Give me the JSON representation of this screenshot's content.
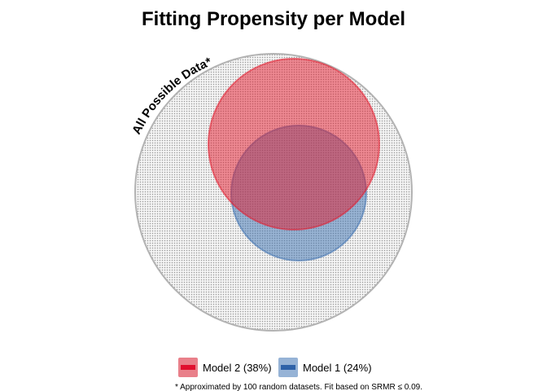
{
  "title": "Fitting Propensity per Model",
  "universe": {
    "label": "All Possible Data*",
    "fill_pattern": "dotted-grey",
    "stroke_color": "#b3b3b3"
  },
  "sets": [
    {
      "id": "model2",
      "label": "Model 2 (38%)",
      "percent": 38,
      "fill_color": "#e41a2c",
      "legend_swatch_color": "#e9808a",
      "legend_line_color": "#e0102e"
    },
    {
      "id": "model1",
      "label": "Model 1 (24%)",
      "percent": 24,
      "fill_color": "#3a6fb0",
      "legend_swatch_color": "#96b3d6",
      "legend_line_color": "#2e62a8"
    }
  ],
  "footnote": "* Approximated by 100 random datasets. Fit based on SRMR ≤ 0.09."
}
